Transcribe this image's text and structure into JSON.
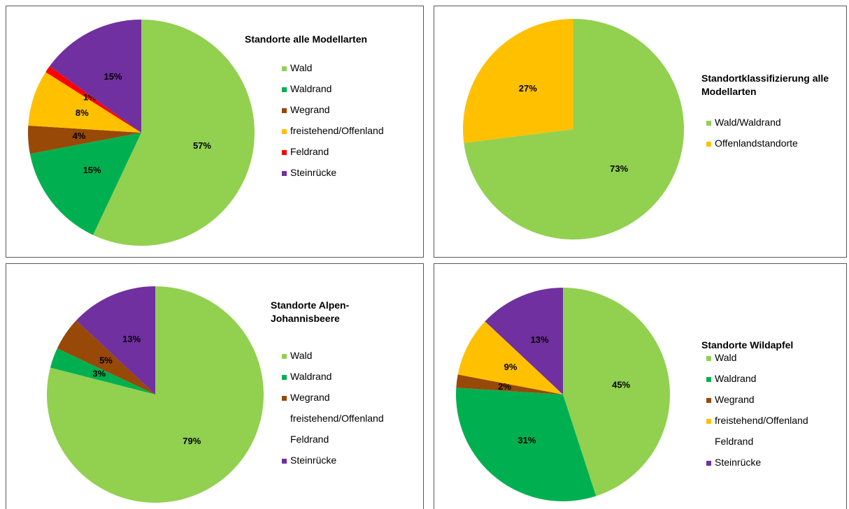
{
  "chart_data": [
    {
      "type": "pie",
      "title": "Standorte alle Modellarten",
      "categories": [
        "Wald",
        "Waldrand",
        "Wegrand",
        "freistehend/Offenland",
        "Feldrand",
        "Steinrücke"
      ],
      "values": [
        57,
        15,
        4,
        8,
        1,
        15
      ],
      "value_labels": [
        "57%",
        "15%",
        "4%",
        "8%",
        "1%",
        "15%"
      ],
      "colors": [
        "#92d050",
        "#00b050",
        "#984807",
        "#ffc000",
        "#ff0000",
        "#7030a0"
      ]
    },
    {
      "type": "pie",
      "title": "Standortklassifizierung alle Modellarten",
      "categories": [
        "Wald/Waldrand",
        "Offenlandstandorte"
      ],
      "values": [
        73,
        27
      ],
      "value_labels": [
        "73%",
        "27%"
      ],
      "colors": [
        "#92d050",
        "#ffc000"
      ]
    },
    {
      "type": "pie",
      "title": "Standorte Alpen-Johannisbeere",
      "categories": [
        "Wald",
        "Waldrand",
        "Wegrand",
        "freistehend/Offenland",
        "Feldrand",
        "Steinrücke"
      ],
      "values": [
        79,
        3,
        5,
        null,
        null,
        13
      ],
      "value_labels": [
        "79%",
        "3%",
        "5%",
        null,
        null,
        "13%"
      ],
      "colors": [
        "#92d050",
        "#00b050",
        "#984807",
        null,
        null,
        "#7030a0"
      ]
    },
    {
      "type": "pie",
      "title": "Standorte Wildapfel",
      "categories": [
        "Wald",
        "Waldrand",
        "Wegrand",
        "freistehend/Offenland",
        "Feldrand",
        "Steinrücke"
      ],
      "values": [
        45,
        31,
        2,
        9,
        null,
        13
      ],
      "value_labels": [
        "45%",
        "31%",
        "2%",
        "9%",
        null,
        "13%"
      ],
      "colors": [
        "#92d050",
        "#00b050",
        "#984807",
        "#ffc000",
        null,
        "#7030a0"
      ]
    }
  ]
}
